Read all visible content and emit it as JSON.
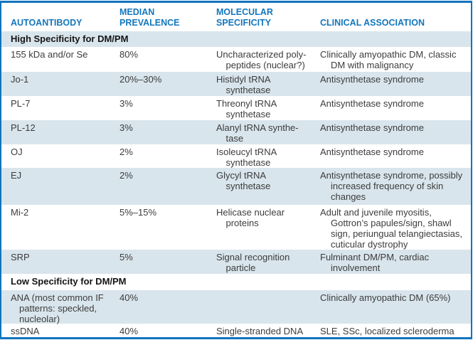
{
  "colors": {
    "frame_blue": "#1173bd",
    "column_header_blue": "#1377bd",
    "stripe_blue": "#d9e5ec",
    "stripe_white": "#ffffff",
    "body_text": "#3c3c3c",
    "section_text": "#141414"
  },
  "table": {
    "columns": {
      "autoantibody": "AUTOANTIBODY",
      "prevalence": "MEDIAN\nPREVALENCE",
      "molecular": "MOLECULAR\nSPECIFICITY",
      "clinical": "CLINICAL ASSOCIATION"
    },
    "sections": [
      {
        "title": "High Specificity for DM/PM",
        "rows": [
          {
            "autoantibody": "155 kDa and/or Se",
            "prevalence": "80%",
            "molecular": "Uncharacterized poly-\npeptides (nuclear?)",
            "clinical": "Clinically amyopathic DM, classic\nDM with malignancy"
          },
          {
            "autoantibody": "Jo-1",
            "prevalence": "20%–30%",
            "molecular": "Histidyl tRNA\nsynthetase",
            "clinical": "Antisynthetase syndrome"
          },
          {
            "autoantibody": "PL-7",
            "prevalence": "3%",
            "molecular": "Threonyl tRNA\nsynthetase",
            "clinical": "Antisynthetase syndrome"
          },
          {
            "autoantibody": "PL-12",
            "prevalence": "3%",
            "molecular": "Alanyl tRNA synthe-\ntase",
            "clinical": "Antisynthetase syndrome"
          },
          {
            "autoantibody": "OJ",
            "prevalence": "2%",
            "molecular": "Isoleucyl tRNA\nsynthetase",
            "clinical": "Antisynthetase syndrome"
          },
          {
            "autoantibody": "EJ",
            "prevalence": "2%",
            "molecular": "Glycyl tRNA\nsynthetase",
            "clinical": "Antisynthetase syndrome, possibly\nincreased frequency of skin\nchanges"
          },
          {
            "autoantibody": "Mi-2",
            "prevalence": "5%–15%",
            "molecular": "Helicase nuclear\nproteins",
            "clinical": "Adult and juvenile myositis,\nGottron’s papules/sign, shawl\nsign, periungual telangiectasias,\ncuticular dystrophy"
          },
          {
            "autoantibody": "SRP",
            "prevalence": "5%",
            "molecular": "Signal recognition\nparticle",
            "clinical": "Fulminant DM/PM, cardiac\ninvolvement"
          }
        ]
      },
      {
        "title": "Low Specificity for DM/PM",
        "rows": [
          {
            "autoantibody": "ANA (most common IF\npatterns: speckled,\nnucleolar)",
            "prevalence": "40%",
            "molecular": "",
            "clinical": "Clinically amyopathic DM (65%)"
          },
          {
            "autoantibody": "ssDNA",
            "prevalence": "40%",
            "molecular": "Single-stranded DNA",
            "clinical": "SLE, SSc, localized scleroderma"
          }
        ]
      }
    ]
  }
}
